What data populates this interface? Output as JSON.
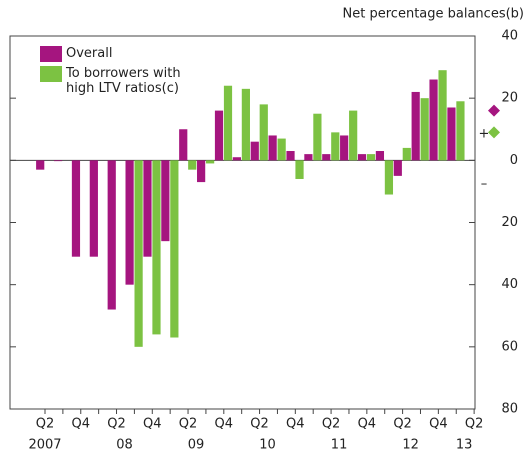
{
  "chart_data": {
    "type": "bar",
    "y_axis_label": "Net percentage balances(b)",
    "categories": [
      "Q2",
      null,
      "Q4",
      null,
      "Q2",
      null,
      "Q4",
      null,
      "Q2",
      null,
      "Q4",
      null,
      "Q2",
      null,
      "Q4",
      null,
      "Q2",
      null,
      "Q4",
      null,
      "Q2",
      null,
      "Q4",
      null,
      "Q2"
    ],
    "year_labels": [
      "2007",
      "08",
      "09",
      "10",
      "11",
      "12",
      "13"
    ],
    "series": [
      {
        "name": "Overall",
        "color": "#a5157f",
        "values": [
          -3,
          0,
          -31,
          -31,
          -48,
          -40,
          -31,
          -26,
          10,
          -7,
          16,
          1,
          6,
          8,
          3,
          2,
          2,
          8,
          2,
          3,
          -5,
          22,
          26,
          17,
          16
        ]
      },
      {
        "name": "To borrowers with high LTV ratios(c)",
        "color": "#7cc242",
        "values": [
          null,
          null,
          null,
          null,
          null,
          -60,
          -56,
          -57,
          -3,
          -1,
          24,
          23,
          18,
          7,
          -6,
          15,
          9,
          16,
          2,
          -11,
          4,
          20,
          29,
          19,
          9
        ]
      }
    ],
    "last_point_marker": "diamond",
    "ylim": [
      -80,
      40
    ],
    "yticks": [
      {
        "value": -80,
        "label": "80"
      },
      {
        "value": -60,
        "label": "60"
      },
      {
        "value": -40,
        "label": "40"
      },
      {
        "value": -20,
        "label": "20"
      },
      0,
      20,
      40
    ],
    "sign_labels": [
      "+",
      "–"
    ]
  }
}
